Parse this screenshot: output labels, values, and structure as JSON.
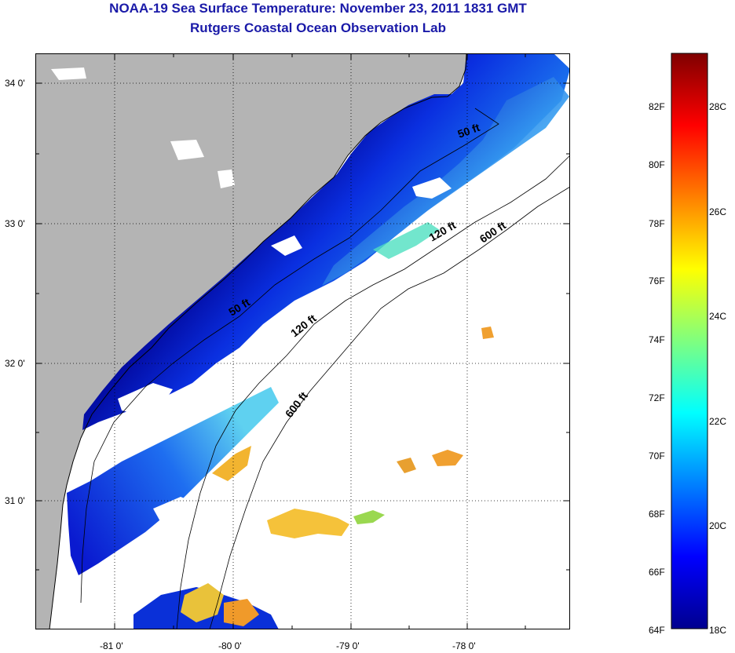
{
  "header": {
    "title": "NOAA-19 Sea Surface Temperature:  November 23, 2011 1831 GMT",
    "subtitle": "Rutgers Coastal Ocean Observation Lab"
  },
  "map": {
    "lat_ticks": [
      "34 0'",
      "33 0'",
      "32 0'",
      "31 0'"
    ],
    "lon_ticks": [
      "-81 0'",
      "-80 0'",
      "-79 0'",
      "-78 0'"
    ],
    "isobaths": [
      {
        "label": "50 ft"
      },
      {
        "label": "50 ft"
      },
      {
        "label": "120 ft"
      },
      {
        "label": "120 ft"
      },
      {
        "label": "600 ft"
      },
      {
        "label": "600 ft"
      }
    ],
    "colors": {
      "land": "#b4b4b4",
      "cloud": "#ffffff",
      "coast": "#000000",
      "grid": "#000000"
    }
  },
  "colorbar": {
    "fahrenheit": [
      "82F",
      "80F",
      "78F",
      "76F",
      "74F",
      "72F",
      "70F",
      "68F",
      "66F",
      "64F"
    ],
    "celsius": [
      "28C",
      "26C",
      "24C",
      "22C",
      "20C",
      "18C"
    ],
    "range_c": [
      18,
      29.5
    ],
    "colormap": "jet"
  }
}
